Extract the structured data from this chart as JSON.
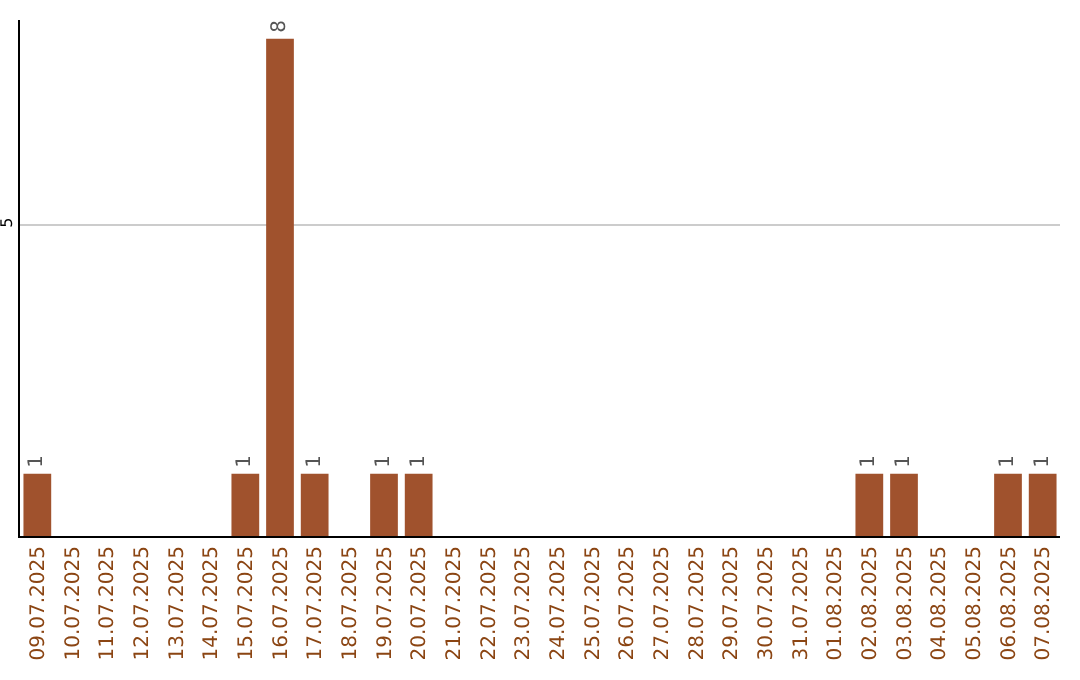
{
  "chart_data": {
    "type": "bar",
    "categories": [
      "09.07.2025",
      "10.07.2025",
      "11.07.2025",
      "12.07.2025",
      "13.07.2025",
      "14.07.2025",
      "15.07.2025",
      "16.07.2025",
      "17.07.2025",
      "18.07.2025",
      "19.07.2025",
      "20.07.2025",
      "21.07.2025",
      "22.07.2025",
      "23.07.2025",
      "24.07.2025",
      "25.07.2025",
      "26.07.2025",
      "27.07.2025",
      "28.07.2025",
      "29.07.2025",
      "30.07.2025",
      "31.07.2025",
      "01.08.2025",
      "02.08.2025",
      "03.08.2025",
      "04.08.2025",
      "05.08.2025",
      "06.08.2025",
      "07.08.2025"
    ],
    "values": [
      1,
      0,
      0,
      0,
      0,
      0,
      1,
      8,
      1,
      0,
      1,
      1,
      0,
      0,
      0,
      0,
      0,
      0,
      0,
      0,
      0,
      0,
      0,
      0,
      1,
      1,
      0,
      0,
      1,
      1
    ],
    "value_labels": [
      "1",
      null,
      null,
      null,
      null,
      null,
      "1",
      "8",
      "1",
      null,
      "1",
      "1",
      null,
      null,
      null,
      null,
      null,
      null,
      null,
      null,
      null,
      null,
      null,
      null,
      "1",
      "1",
      null,
      null,
      "1",
      "1"
    ],
    "color": "#a0522d",
    "ylim": [
      0,
      8.3
    ],
    "yticks": [
      5
    ],
    "grid": "y"
  }
}
